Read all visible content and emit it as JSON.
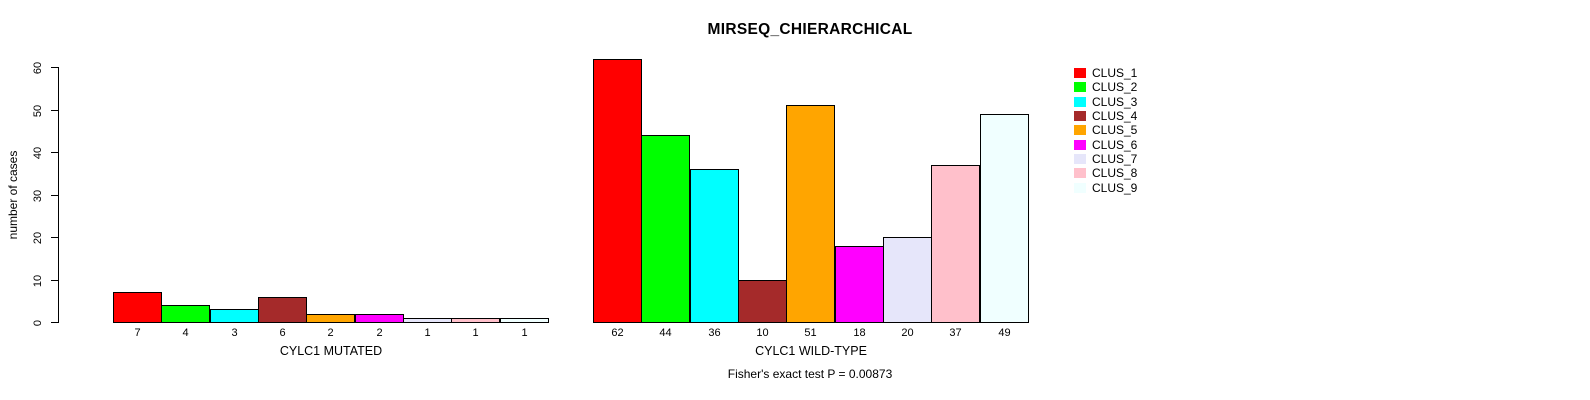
{
  "chart_data": {
    "type": "bar",
    "title": "MIRSEQ_CHIERARCHICAL",
    "ylabel": "number of cases",
    "ylim": [
      0,
      60
    ],
    "yticks": [
      0,
      10,
      20,
      30,
      40,
      50,
      60
    ],
    "grid": false,
    "bar_border_color": "#000000",
    "colors": [
      "#FF0000",
      "#00FF00",
      "#00FFFF",
      "#A52A2A",
      "#FFA500",
      "#FF00FF",
      "#E6E6FA",
      "#FFC0CB",
      "#F0FFFF"
    ],
    "groups": [
      {
        "label": "CYLC1 MUTATED",
        "values": [
          7,
          4,
          3,
          6,
          2,
          2,
          1,
          1,
          1
        ]
      },
      {
        "label": "CYLC1 WILD-TYPE",
        "values": [
          62,
          44,
          36,
          10,
          51,
          18,
          20,
          37,
          49
        ]
      }
    ],
    "legend": {
      "position": "right",
      "entries": [
        "CLUS_1",
        "CLUS_2",
        "CLUS_3",
        "CLUS_4",
        "CLUS_5",
        "CLUS_6",
        "CLUS_7",
        "CLUS_8",
        "CLUS_9"
      ]
    },
    "annotation": "Fisher's exact test P = 0.00873"
  }
}
